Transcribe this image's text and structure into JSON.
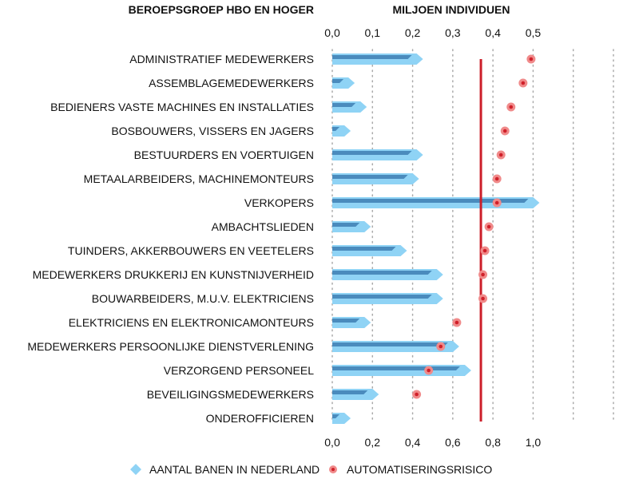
{
  "chart_data": {
    "type": "bar",
    "category_header": "BEROEPSGROEP HBO EN HOGER",
    "top_axis_title": "MILJOEN INDIVIDUEN",
    "top_axis_ticks": [
      "0,0",
      "0,1",
      "0,2",
      "0,3",
      "0,4",
      "0,5"
    ],
    "top_axis_range": [
      0,
      0.7
    ],
    "bottom_axis_ticks": [
      "0,0",
      "0,2",
      "0,4",
      "0,6",
      "0,8",
      "1,0"
    ],
    "bottom_axis_range": [
      0,
      1.4
    ],
    "grid": "vertical dotted",
    "legend_position": "bottom",
    "categories": [
      "ADMINISTRATIEF MEDEWERKERS",
      "ASSEMBLAGEMEDEWERKERS",
      "BEDIENERS VASTE MACHINES EN INSTALLATIES",
      "BOSBOUWERS, VISSERS EN JAGERS",
      "BESTUURDERS EN VOERTUIGEN",
      "METAALARBEIDERS, MACHINEMONTEURS",
      "VERKOPERS",
      "AMBACHTSLIEDEN",
      "TUINDERS, AKKERBOUWERS EN VEETELERS",
      "MEDEWERKERS DRUKKERIJ  EN KUNSTNIJVERHEID",
      "BOUWARBEIDERS, M.U.V. ELEKTRICIENS",
      "ELEKTRICIENS EN ELEKTRONICAMONTEURS",
      "MEDEWERKERS PERSOONLIJKE DIENSTVERLENING",
      "VERZORGEND PERSONEEL",
      "BEVEILIGINGSMEDEWERKERS",
      "ONDEROFFICIEREN"
    ],
    "series": [
      {
        "name": "AANTAL BANEN IN NEDERLAND",
        "axis": "top",
        "values": [
          0.21,
          0.04,
          0.07,
          0.03,
          0.21,
          0.2,
          0.5,
          0.08,
          0.17,
          0.26,
          0.26,
          0.08,
          0.3,
          0.33,
          0.1,
          0.03
        ]
      },
      {
        "name": "AUTOMATISERINGSRISICO",
        "axis": "bottom",
        "values": [
          0.99,
          0.95,
          0.89,
          0.86,
          0.84,
          0.82,
          0.82,
          0.78,
          0.76,
          0.75,
          0.75,
          0.62,
          0.54,
          0.48,
          0.42,
          null
        ]
      }
    ],
    "reference_line": {
      "axis": "bottom",
      "value": 0.74
    },
    "colors": {
      "bar_light": "#8fd3f5",
      "bar_dark": "#4a8bbd",
      "dot_fill": "#f08a8a",
      "dot_center": "#d0202a",
      "reference_line": "#cc1f2a",
      "grid": "#aaaaaa"
    }
  }
}
